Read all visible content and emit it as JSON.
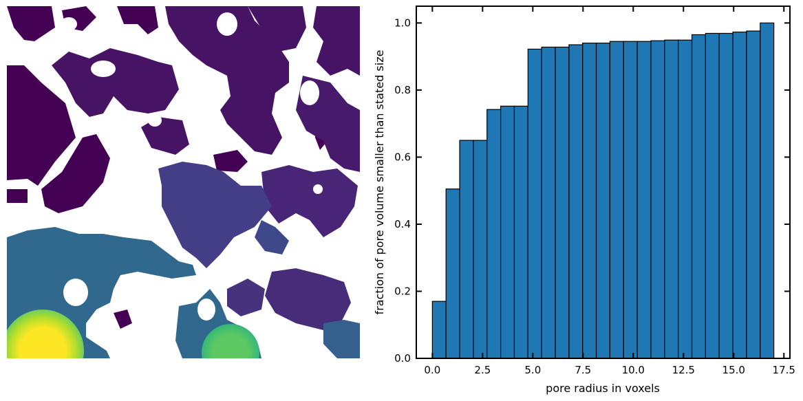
{
  "image_panel": {
    "colormap": "viridis",
    "background": "#ffffff"
  },
  "chart_data": {
    "type": "bar",
    "title": "",
    "xlabel": "pore radius in voxels",
    "ylabel": "fraction of pore volume smaller than stated size",
    "xlim": [
      -0.8,
      17.8
    ],
    "ylim": [
      0.0,
      1.05
    ],
    "xticks": [
      0.0,
      2.5,
      5.0,
      7.5,
      10.0,
      12.5,
      15.0,
      17.5
    ],
    "xtick_labels": [
      "0.0",
      "2.5",
      "5.0",
      "7.5",
      "10.0",
      "12.5",
      "15.0",
      "17.5"
    ],
    "yticks": [
      0.0,
      0.2,
      0.4,
      0.6,
      0.8,
      1.0
    ],
    "ytick_labels": [
      "0.0",
      "0.2",
      "0.4",
      "0.6",
      "0.8",
      "1.0"
    ],
    "bin_width": 0.68,
    "bar_color": "#1f77b4",
    "edge_color": "#000000",
    "series": [
      {
        "x": [
          0.0,
          0.68,
          1.36,
          2.04,
          2.72,
          3.4,
          4.08,
          4.76,
          5.44,
          6.12,
          6.8,
          7.48,
          8.16,
          8.84,
          9.52,
          10.2,
          10.88,
          11.56,
          12.24,
          12.92,
          13.6,
          14.28,
          14.96,
          15.64,
          16.32
        ],
        "values": [
          0.17,
          0.505,
          0.65,
          0.65,
          0.742,
          0.752,
          0.752,
          0.922,
          0.928,
          0.928,
          0.935,
          0.94,
          0.94,
          0.945,
          0.945,
          0.945,
          0.947,
          0.949,
          0.949,
          0.965,
          0.969,
          0.969,
          0.973,
          0.976,
          1.0
        ]
      }
    ],
    "grid": false,
    "legend": "none"
  }
}
